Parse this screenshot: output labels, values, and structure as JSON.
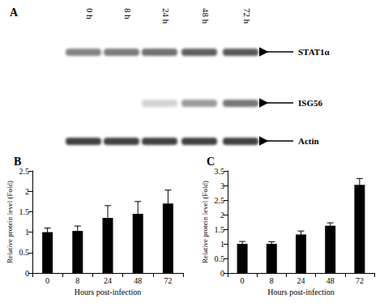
{
  "panel_a": {
    "label": "A",
    "lanes": [
      "0 h",
      "8 h",
      "24 h",
      "48 h",
      "72 h"
    ],
    "bands": [
      {
        "label": "STAT1α",
        "intensity": [
          0.55,
          0.58,
          0.65,
          0.72,
          0.75
        ]
      },
      {
        "label": "ISG56",
        "intensity": [
          0,
          0,
          0.2,
          0.45,
          0.6
        ]
      },
      {
        "label": "Actin",
        "intensity": [
          0.85,
          0.85,
          0.85,
          0.85,
          0.85
        ]
      }
    ]
  },
  "chart_data": [
    {
      "type": "bar",
      "title": "B",
      "x_label": "Hours post-infection",
      "y_label": "Relative protein level (Fold)",
      "categories": [
        "0",
        "8",
        "24",
        "48",
        "72"
      ],
      "values": [
        1.0,
        1.03,
        1.35,
        1.45,
        1.7
      ],
      "errors": [
        0.1,
        0.12,
        0.3,
        0.3,
        0.33
      ],
      "color": "#000000",
      "ylim": [
        0,
        2.5
      ],
      "yticks": [
        0,
        0.5,
        1,
        1.5,
        2,
        2.5
      ],
      "grid": false
    },
    {
      "type": "bar",
      "title": "C",
      "x_label": "Hours post-infection",
      "y_label": "Relative protein level (Fold)",
      "categories": [
        "0",
        "8",
        "24",
        "48",
        "72"
      ],
      "values": [
        1.0,
        1.0,
        1.32,
        1.62,
        3.02
      ],
      "errors": [
        0.08,
        0.07,
        0.12,
        0.1,
        0.22
      ],
      "color": "#000000",
      "ylim": [
        0,
        3.5
      ],
      "yticks": [
        0,
        0.5,
        1,
        1.5,
        2,
        2.5,
        3,
        3.5
      ],
      "grid": false
    }
  ]
}
